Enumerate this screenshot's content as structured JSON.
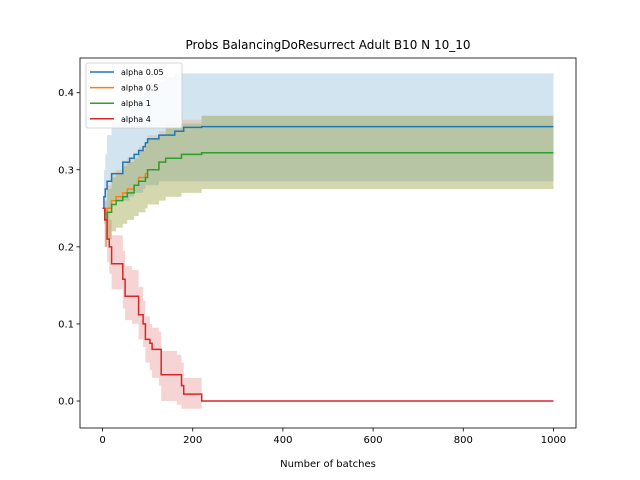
{
  "chart_data": {
    "type": "line",
    "title": "Probs BalancingDoResurrect Adult B10 N 10_10",
    "xlabel": "Number of batches",
    "ylabel": "",
    "xlim": [
      -50,
      1050
    ],
    "ylim": [
      -0.035,
      0.445
    ],
    "xticks": [
      0,
      200,
      400,
      600,
      800,
      1000
    ],
    "yticks": [
      0.0,
      0.1,
      0.2,
      0.3,
      0.4
    ],
    "xtick_labels": [
      "0",
      "200",
      "400",
      "600",
      "800",
      "1000"
    ],
    "ytick_labels": [
      "0.0",
      "0.1",
      "0.2",
      "0.3",
      "0.4"
    ],
    "legend": "top-left",
    "series": [
      {
        "name": "alpha 0.05",
        "color": "#1f77b4",
        "x": [
          0,
          3,
          6,
          10,
          20,
          45,
          60,
          70,
          80,
          90,
          95,
          100,
          125,
          140,
          160,
          180,
          220,
          1000
        ],
        "y": [
          0.25,
          0.265,
          0.275,
          0.285,
          0.295,
          0.31,
          0.315,
          0.32,
          0.325,
          0.33,
          0.335,
          0.34,
          0.345,
          0.345,
          0.35,
          0.355,
          0.356,
          0.356
        ],
        "lower": [
          0.25,
          0.23,
          0.24,
          0.25,
          0.26,
          0.26,
          0.265,
          0.27,
          0.27,
          0.275,
          0.28,
          0.28,
          0.285,
          0.285,
          0.285,
          0.285,
          0.285,
          0.285
        ],
        "upper": [
          0.25,
          0.3,
          0.32,
          0.345,
          0.36,
          0.37,
          0.385,
          0.39,
          0.395,
          0.4,
          0.405,
          0.41,
          0.415,
          0.42,
          0.425,
          0.425,
          0.425,
          0.425
        ]
      },
      {
        "name": "alpha 0.5",
        "color": "#ff7f0e",
        "x": [
          0,
          5,
          10,
          20,
          30,
          45,
          55,
          70,
          80,
          95,
          100,
          125,
          140,
          175,
          220,
          1000
        ],
        "y": [
          0.25,
          0.235,
          0.25,
          0.26,
          0.265,
          0.27,
          0.275,
          0.28,
          0.29,
          0.295,
          0.3,
          0.31,
          0.315,
          0.32,
          0.322,
          0.322
        ],
        "lower": [
          0.25,
          0.2,
          0.21,
          0.22,
          0.225,
          0.23,
          0.235,
          0.24,
          0.245,
          0.25,
          0.255,
          0.26,
          0.265,
          0.27,
          0.275,
          0.275
        ],
        "upper": [
          0.25,
          0.25,
          0.28,
          0.295,
          0.3,
          0.31,
          0.315,
          0.32,
          0.33,
          0.335,
          0.345,
          0.35,
          0.36,
          0.365,
          0.37,
          0.37
        ]
      },
      {
        "name": "alpha 1",
        "color": "#2ca02c",
        "x": [
          0,
          5,
          10,
          20,
          30,
          45,
          55,
          70,
          80,
          95,
          100,
          125,
          140,
          175,
          220,
          1000
        ],
        "y": [
          0.25,
          0.235,
          0.245,
          0.255,
          0.26,
          0.265,
          0.27,
          0.28,
          0.285,
          0.29,
          0.3,
          0.31,
          0.315,
          0.32,
          0.322,
          0.322
        ],
        "lower": [
          0.25,
          0.2,
          0.21,
          0.22,
          0.225,
          0.23,
          0.235,
          0.24,
          0.245,
          0.25,
          0.255,
          0.26,
          0.265,
          0.27,
          0.275,
          0.275
        ],
        "upper": [
          0.25,
          0.25,
          0.275,
          0.29,
          0.295,
          0.305,
          0.31,
          0.315,
          0.325,
          0.33,
          0.34,
          0.345,
          0.355,
          0.36,
          0.37,
          0.37
        ]
      },
      {
        "name": "alpha 4",
        "color": "#d62728",
        "x": [
          0,
          5,
          10,
          15,
          20,
          45,
          50,
          65,
          80,
          90,
          95,
          105,
          110,
          125,
          130,
          165,
          175,
          180,
          215,
          220,
          1000
        ],
        "y": [
          0.25,
          0.235,
          0.21,
          0.2,
          0.178,
          0.158,
          0.136,
          0.136,
          0.112,
          0.1,
          0.08,
          0.075,
          0.067,
          0.067,
          0.034,
          0.034,
          0.02,
          0.009,
          0.009,
          0.0,
          0.0
        ],
        "lower": [
          0.25,
          0.2,
          0.18,
          0.165,
          0.145,
          0.12,
          0.105,
          0.1,
          0.08,
          0.07,
          0.05,
          0.04,
          0.03,
          0.02,
          0.0,
          -0.005,
          -0.01,
          -0.01,
          -0.01,
          0.0,
          0.0
        ],
        "upper": [
          0.25,
          0.26,
          0.245,
          0.235,
          0.215,
          0.195,
          0.175,
          0.17,
          0.148,
          0.13,
          0.11,
          0.1,
          0.095,
          0.09,
          0.065,
          0.06,
          0.05,
          0.03,
          0.03,
          0.0,
          0.0
        ]
      }
    ]
  }
}
